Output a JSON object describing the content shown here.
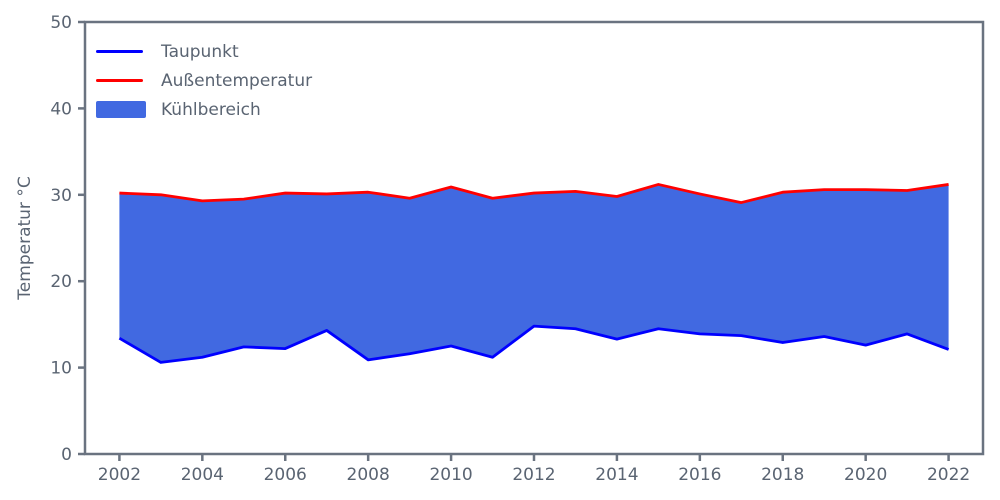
{
  "figure": {
    "background": "#ffffff",
    "axis_color": "#6a7380",
    "text_color": "#5a6472"
  },
  "chart_data": {
    "type": "area",
    "title": "",
    "xlabel": "",
    "ylabel": "Temperatur °C",
    "x": [
      2002,
      2003,
      2004,
      2005,
      2006,
      2007,
      2008,
      2009,
      2010,
      2011,
      2012,
      2013,
      2014,
      2015,
      2016,
      2017,
      2018,
      2019,
      2020,
      2021,
      2022
    ],
    "series": [
      {
        "name": "Taupunkt",
        "color": "#0000ff",
        "values": [
          13.4,
          10.6,
          11.2,
          12.4,
          12.2,
          14.3,
          10.9,
          11.6,
          12.5,
          11.2,
          14.8,
          14.5,
          13.3,
          14.5,
          13.9,
          13.7,
          12.9,
          13.6,
          12.6,
          13.9,
          12.1
        ]
      },
      {
        "name": "Außentemperatur",
        "color": "#ff0000",
        "values": [
          30.2,
          30.0,
          29.3,
          29.5,
          30.2,
          30.1,
          30.3,
          29.6,
          30.9,
          29.6,
          30.2,
          30.4,
          29.8,
          31.2,
          30.1,
          29.1,
          30.3,
          30.6,
          30.6,
          30.5,
          31.2
        ]
      }
    ],
    "fill": {
      "name": "Kühlbereich",
      "color": "#4169e1",
      "between": [
        "Taupunkt",
        "Außentemperatur"
      ]
    },
    "xlim": [
      2001.17,
      2022.83
    ],
    "ylim": [
      0,
      50
    ],
    "xticks": [
      2002,
      2004,
      2006,
      2008,
      2010,
      2012,
      2014,
      2016,
      2018,
      2020,
      2022
    ],
    "yticks": [
      0,
      10,
      20,
      30,
      40,
      50
    ],
    "grid": false,
    "legend_position": "upper-left"
  }
}
